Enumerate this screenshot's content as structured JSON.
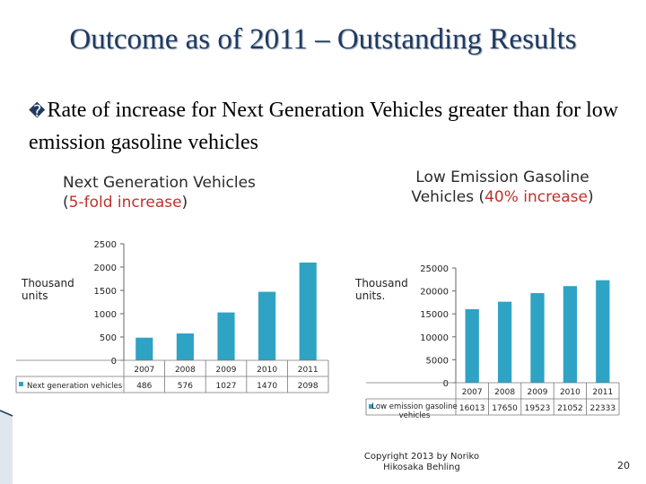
{
  "slide": {
    "title": "Outcome as of 2011 – Outstanding Results",
    "bullet_marker": "�",
    "bullet_text": "Rate of increase for Next Generation Vehicles greater than for low emission gasoline vehicles",
    "copyright": "Copyright 2013 by Noriko Hikosaka Behling",
    "page_number": "20"
  },
  "chart_data": [
    {
      "type": "bar",
      "heading": "Next Generation Vehicles",
      "heading_paren_open": "(",
      "heading_highlight": "5-fold increase",
      "heading_paren_close": ")",
      "unit_label": "Thousand units",
      "categories": [
        "2007",
        "2008",
        "2009",
        "2010",
        "2011"
      ],
      "series": [
        {
          "name": "Next generation vehicles",
          "values": [
            486,
            576,
            1027,
            1470,
            2098
          ]
        }
      ],
      "value_labels": [
        "486",
        "576",
        "1027",
        "1470",
        "2098"
      ],
      "ylim": [
        0,
        2500
      ],
      "yticks": [
        "0",
        "500",
        "1000",
        "1500",
        "2000",
        "2500"
      ],
      "color": "#2ea3c4"
    },
    {
      "type": "bar",
      "heading_line1": "Low Emission Gasoline",
      "heading_line2_prefix": "Vehicles (",
      "heading_highlight": "40% increase",
      "heading_paren_close": ")",
      "unit_label": "Thousand units.",
      "categories": [
        "2007",
        "2008",
        "2009",
        "2010",
        "2011"
      ],
      "series": [
        {
          "name": "Low emission gasoline vehicles",
          "values": [
            16013,
            17650,
            19523,
            21052,
            22333
          ]
        }
      ],
      "value_labels": [
        "16013",
        "17650",
        "19523",
        "21052",
        "22333"
      ],
      "ylim": [
        0,
        25000
      ],
      "yticks": [
        "0",
        "5000",
        "10000",
        "15000",
        "20000",
        "25000"
      ],
      "color": "#2ea3c4"
    }
  ]
}
